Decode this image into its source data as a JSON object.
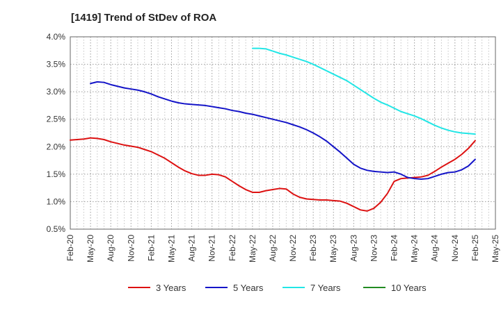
{
  "chart_data": {
    "type": "line",
    "title": "[1419]  Trend of StDev of ROA",
    "xlabel": "",
    "ylabel": "",
    "x_ticks": [
      "Feb-20",
      "May-20",
      "Aug-20",
      "Nov-20",
      "Feb-21",
      "May-21",
      "Aug-21",
      "Nov-21",
      "Feb-22",
      "May-22",
      "Aug-22",
      "Nov-22",
      "Feb-23",
      "May-23",
      "Aug-23",
      "Nov-23",
      "Feb-24",
      "May-24",
      "Aug-24",
      "Nov-24",
      "Feb-25",
      "May-25"
    ],
    "y_ticks": [
      "0.5%",
      "1.0%",
      "1.5%",
      "2.0%",
      "2.5%",
      "3.0%",
      "3.5%",
      "4.0%"
    ],
    "ylim": [
      0.5,
      4.0
    ],
    "grid": true,
    "legend_position": "bottom",
    "series": [
      {
        "name": "3 Years",
        "color": "#dd1111",
        "points": [
          [
            "Feb-20",
            2.12
          ],
          [
            "Mar-20",
            2.13
          ],
          [
            "Apr-20",
            2.14
          ],
          [
            "May-20",
            2.16
          ],
          [
            "Jun-20",
            2.15
          ],
          [
            "Jul-20",
            2.13
          ],
          [
            "Aug-20",
            2.09
          ],
          [
            "Sep-20",
            2.06
          ],
          [
            "Oct-20",
            2.03
          ],
          [
            "Nov-20",
            2.01
          ],
          [
            "Dec-20",
            1.99
          ],
          [
            "Jan-21",
            1.95
          ],
          [
            "Feb-21",
            1.91
          ],
          [
            "Mar-21",
            1.85
          ],
          [
            "Apr-21",
            1.79
          ],
          [
            "May-21",
            1.71
          ],
          [
            "Jun-21",
            1.63
          ],
          [
            "Jul-21",
            1.56
          ],
          [
            "Aug-21",
            1.51
          ],
          [
            "Sep-21",
            1.48
          ],
          [
            "Oct-21",
            1.48
          ],
          [
            "Nov-21",
            1.5
          ],
          [
            "Dec-21",
            1.49
          ],
          [
            "Jan-22",
            1.45
          ],
          [
            "Feb-22",
            1.37
          ],
          [
            "Mar-22",
            1.29
          ],
          [
            "Apr-22",
            1.22
          ],
          [
            "May-22",
            1.17
          ],
          [
            "Jun-22",
            1.17
          ],
          [
            "Jul-22",
            1.2
          ],
          [
            "Aug-22",
            1.22
          ],
          [
            "Sep-22",
            1.24
          ],
          [
            "Oct-22",
            1.23
          ],
          [
            "Nov-22",
            1.14
          ],
          [
            "Dec-22",
            1.08
          ],
          [
            "Jan-23",
            1.05
          ],
          [
            "Feb-23",
            1.04
          ],
          [
            "Mar-23",
            1.03
          ],
          [
            "Apr-23",
            1.03
          ],
          [
            "May-23",
            1.02
          ],
          [
            "Jun-23",
            1.01
          ],
          [
            "Jul-23",
            0.97
          ],
          [
            "Aug-23",
            0.91
          ],
          [
            "Sep-23",
            0.85
          ],
          [
            "Oct-23",
            0.83
          ],
          [
            "Nov-23",
            0.88
          ],
          [
            "Dec-23",
            0.99
          ],
          [
            "Jan-24",
            1.15
          ],
          [
            "Feb-24",
            1.37
          ],
          [
            "Mar-24",
            1.42
          ],
          [
            "Apr-24",
            1.43
          ],
          [
            "May-24",
            1.44
          ],
          [
            "Jun-24",
            1.45
          ],
          [
            "Jul-24",
            1.48
          ],
          [
            "Aug-24",
            1.55
          ],
          [
            "Sep-24",
            1.63
          ],
          [
            "Oct-24",
            1.7
          ],
          [
            "Nov-24",
            1.77
          ],
          [
            "Dec-24",
            1.86
          ],
          [
            "Jan-25",
            1.97
          ],
          [
            "Feb-25",
            2.11
          ]
        ]
      },
      {
        "name": "5 Years",
        "color": "#1414c8",
        "points": [
          [
            "May-20",
            3.15
          ],
          [
            "Jun-20",
            3.18
          ],
          [
            "Jul-20",
            3.17
          ],
          [
            "Aug-20",
            3.13
          ],
          [
            "Sep-20",
            3.1
          ],
          [
            "Oct-20",
            3.07
          ],
          [
            "Nov-20",
            3.05
          ],
          [
            "Dec-20",
            3.03
          ],
          [
            "Jan-21",
            3.0
          ],
          [
            "Feb-21",
            2.96
          ],
          [
            "Mar-21",
            2.91
          ],
          [
            "Apr-21",
            2.87
          ],
          [
            "May-21",
            2.83
          ],
          [
            "Jun-21",
            2.8
          ],
          [
            "Jul-21",
            2.78
          ],
          [
            "Aug-21",
            2.77
          ],
          [
            "Sep-21",
            2.76
          ],
          [
            "Oct-21",
            2.75
          ],
          [
            "Nov-21",
            2.73
          ],
          [
            "Dec-21",
            2.71
          ],
          [
            "Jan-22",
            2.69
          ],
          [
            "Feb-22",
            2.66
          ],
          [
            "Mar-22",
            2.64
          ],
          [
            "Apr-22",
            2.61
          ],
          [
            "May-22",
            2.59
          ],
          [
            "Jun-22",
            2.56
          ],
          [
            "Jul-22",
            2.53
          ],
          [
            "Aug-22",
            2.5
          ],
          [
            "Sep-22",
            2.47
          ],
          [
            "Oct-22",
            2.44
          ],
          [
            "Nov-22",
            2.4
          ],
          [
            "Dec-22",
            2.36
          ],
          [
            "Jan-23",
            2.31
          ],
          [
            "Feb-23",
            2.25
          ],
          [
            "Mar-23",
            2.18
          ],
          [
            "Apr-23",
            2.1
          ],
          [
            "May-23",
            2.0
          ],
          [
            "Jun-23",
            1.9
          ],
          [
            "Jul-23",
            1.79
          ],
          [
            "Aug-23",
            1.68
          ],
          [
            "Sep-23",
            1.61
          ],
          [
            "Oct-23",
            1.57
          ],
          [
            "Nov-23",
            1.55
          ],
          [
            "Dec-23",
            1.54
          ],
          [
            "Jan-24",
            1.53
          ],
          [
            "Feb-24",
            1.54
          ],
          [
            "Mar-24",
            1.5
          ],
          [
            "Apr-24",
            1.44
          ],
          [
            "May-24",
            1.42
          ],
          [
            "Jun-24",
            1.41
          ],
          [
            "Jul-24",
            1.42
          ],
          [
            "Aug-24",
            1.46
          ],
          [
            "Sep-24",
            1.5
          ],
          [
            "Oct-24",
            1.53
          ],
          [
            "Nov-24",
            1.54
          ],
          [
            "Dec-24",
            1.58
          ],
          [
            "Jan-25",
            1.65
          ],
          [
            "Feb-25",
            1.77
          ]
        ]
      },
      {
        "name": "7 Years",
        "color": "#22e6e6",
        "points": [
          [
            "May-22",
            3.79
          ],
          [
            "Jun-22",
            3.79
          ],
          [
            "Jul-22",
            3.78
          ],
          [
            "Aug-22",
            3.74
          ],
          [
            "Sep-22",
            3.7
          ],
          [
            "Oct-22",
            3.67
          ],
          [
            "Nov-22",
            3.63
          ],
          [
            "Dec-22",
            3.59
          ],
          [
            "Jan-23",
            3.55
          ],
          [
            "Feb-23",
            3.5
          ],
          [
            "Mar-23",
            3.44
          ],
          [
            "Apr-23",
            3.38
          ],
          [
            "May-23",
            3.32
          ],
          [
            "Jun-23",
            3.26
          ],
          [
            "Jul-23",
            3.2
          ],
          [
            "Aug-23",
            3.12
          ],
          [
            "Sep-23",
            3.04
          ],
          [
            "Oct-23",
            2.96
          ],
          [
            "Nov-23",
            2.88
          ],
          [
            "Dec-23",
            2.81
          ],
          [
            "Jan-24",
            2.76
          ],
          [
            "Feb-24",
            2.7
          ],
          [
            "Mar-24",
            2.64
          ],
          [
            "Apr-24",
            2.6
          ],
          [
            "May-24",
            2.56
          ],
          [
            "Jun-24",
            2.51
          ],
          [
            "Jul-24",
            2.45
          ],
          [
            "Aug-24",
            2.39
          ],
          [
            "Sep-24",
            2.34
          ],
          [
            "Oct-24",
            2.3
          ],
          [
            "Nov-24",
            2.27
          ],
          [
            "Dec-24",
            2.25
          ],
          [
            "Jan-25",
            2.24
          ],
          [
            "Feb-25",
            2.23
          ]
        ]
      },
      {
        "name": "10 Years",
        "color": "#228b22",
        "points": []
      }
    ]
  }
}
